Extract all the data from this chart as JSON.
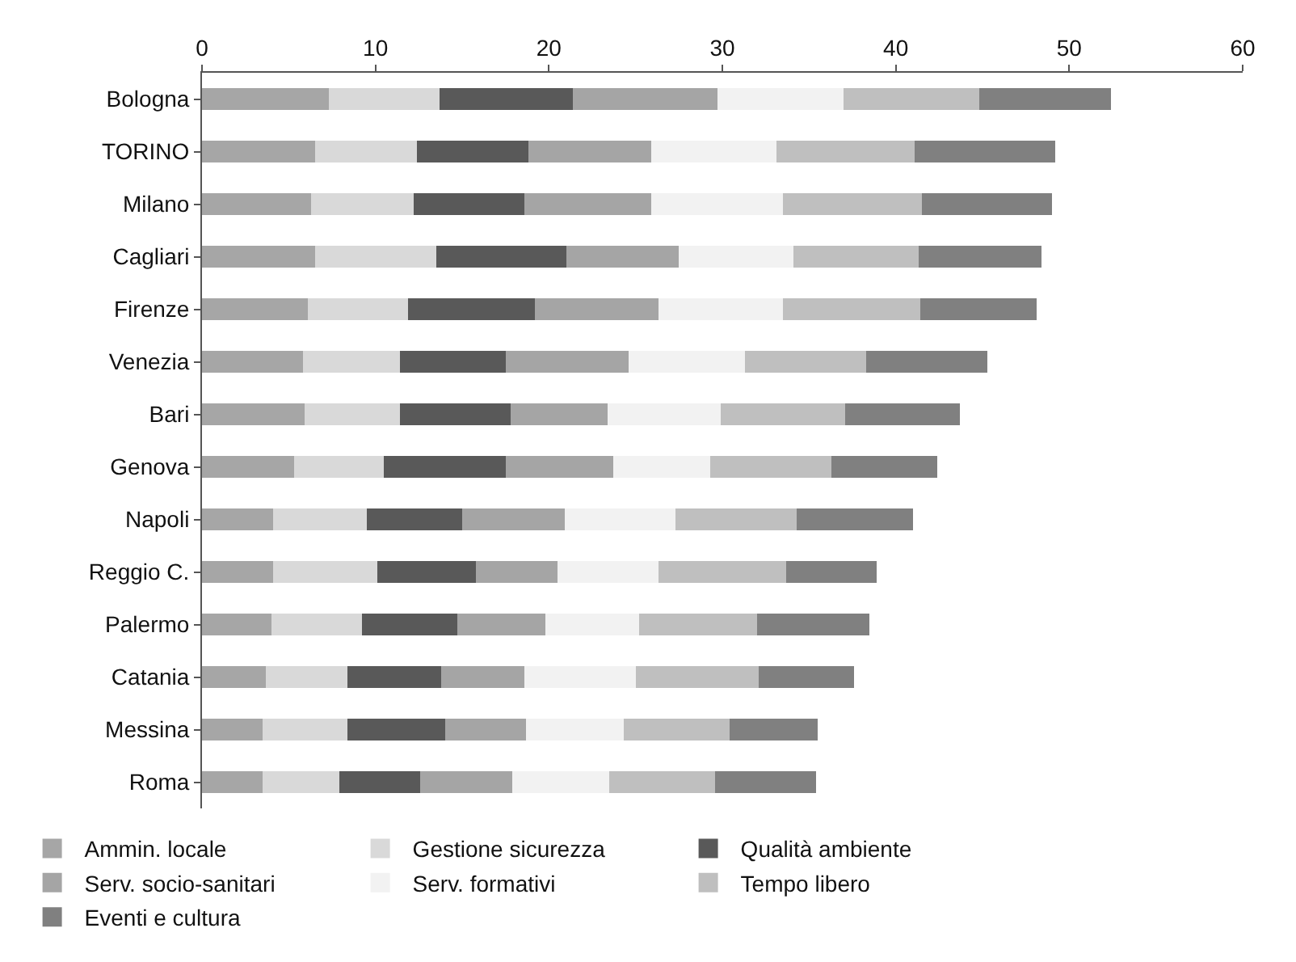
{
  "chart_data": {
    "type": "bar",
    "orientation": "horizontal",
    "stacked": true,
    "categories": [
      "Bologna",
      "TORINO",
      "Milano",
      "Cagliari",
      "Firenze",
      "Venezia",
      "Bari",
      "Genova",
      "Napoli",
      "Reggio C.",
      "Palermo",
      "Catania",
      "Messina",
      "Roma"
    ],
    "series": [
      {
        "name": "Ammin. locale",
        "color": "#a6a6a6",
        "values": [
          7.3,
          6.5,
          6.3,
          6.5,
          6.1,
          5.8,
          5.9,
          5.3,
          4.1,
          4.1,
          4.0,
          3.7,
          3.5,
          3.5
        ]
      },
      {
        "name": "Gestione sicurezza",
        "color": "#d9d9d9",
        "values": [
          6.4,
          5.9,
          5.9,
          7.0,
          5.8,
          5.6,
          5.5,
          5.2,
          5.4,
          6.0,
          5.2,
          4.7,
          4.9,
          4.4
        ]
      },
      {
        "name": "Qualità ambiente",
        "color": "#595959",
        "values": [
          7.7,
          6.4,
          6.4,
          7.5,
          7.3,
          6.1,
          6.4,
          7.0,
          5.5,
          5.7,
          5.5,
          5.4,
          5.6,
          4.7
        ]
      },
      {
        "name": "Serv. socio-sanitari",
        "color": "#a5a5a5",
        "values": [
          8.3,
          7.1,
          7.3,
          6.5,
          7.1,
          7.1,
          5.6,
          6.2,
          5.9,
          4.7,
          5.1,
          4.8,
          4.7,
          5.3
        ]
      },
      {
        "name": "Serv. formativi",
        "color": "#f2f2f2",
        "values": [
          7.3,
          7.2,
          7.6,
          6.6,
          7.2,
          6.7,
          6.5,
          5.6,
          6.4,
          5.8,
          5.4,
          6.4,
          5.6,
          5.6
        ]
      },
      {
        "name": "Tempo libero",
        "color": "#bfbfbf",
        "values": [
          7.8,
          8.0,
          8.0,
          7.2,
          7.9,
          7.0,
          7.2,
          7.0,
          7.0,
          7.4,
          6.8,
          7.1,
          6.1,
          6.1
        ]
      },
      {
        "name": "Eventi e cultura",
        "color": "#808080",
        "values": [
          7.6,
          8.1,
          7.5,
          7.1,
          6.7,
          7.0,
          6.6,
          6.1,
          6.7,
          5.2,
          6.5,
          5.5,
          5.1,
          5.8
        ]
      }
    ],
    "xlim": [
      0,
      60
    ],
    "xticks": [
      0,
      10,
      20,
      30,
      40,
      50,
      60
    ],
    "legend": "bottom"
  }
}
